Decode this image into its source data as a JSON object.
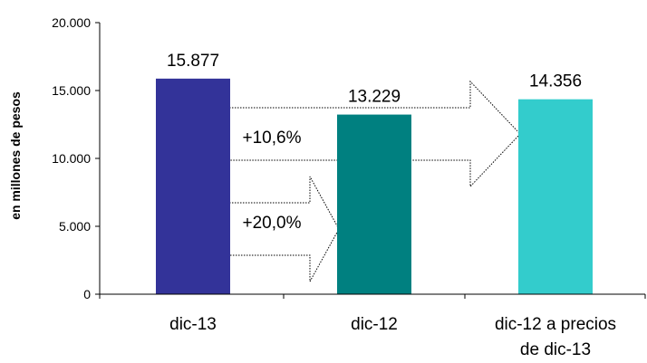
{
  "chart_data": {
    "type": "bar",
    "categories": [
      [
        "dic-13"
      ],
      [
        "dic-12"
      ],
      [
        "dic-12 a precios",
        "de dic-13"
      ]
    ],
    "values": [
      15877,
      13229,
      14356
    ],
    "value_labels": [
      "15.877",
      "13.229",
      "14.356"
    ],
    "bar_colors": [
      "#333399",
      "#008080",
      "#33CCCC"
    ],
    "ylabel": "en millones de pesos",
    "ylim": [
      0,
      20000
    ],
    "yticks": [
      0,
      5000,
      10000,
      15000,
      20000
    ],
    "ytick_labels": [
      "0",
      "5.000",
      "10.000",
      "15.000",
      "20.000"
    ],
    "grid": false,
    "annotations": [
      {
        "text": "+10,6%",
        "from": "dic-13",
        "to": "dic-12 a precios de dic-13"
      },
      {
        "text": "+20,0%",
        "from": "dic-13",
        "to": "dic-12"
      }
    ]
  }
}
